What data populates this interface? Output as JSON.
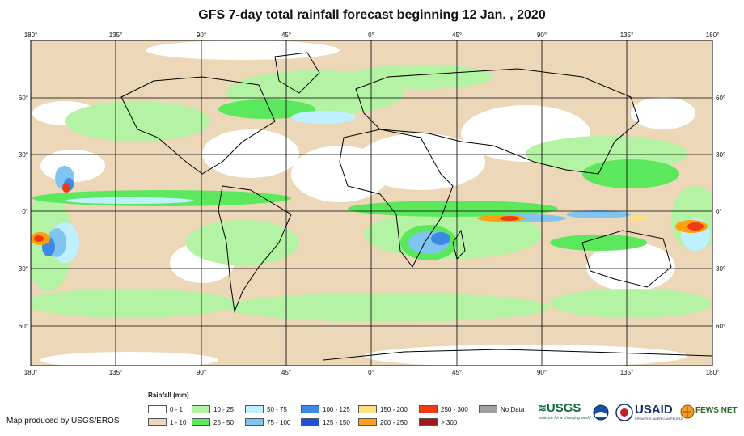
{
  "title": "GFS 7-day total rainfall forecast beginning 12 Jan. , 2020",
  "axes": {
    "lon_ticks": [
      "180°",
      "135°",
      "90°",
      "45°",
      "0°",
      "45°",
      "90°",
      "135°",
      "180°"
    ],
    "lat_ticks": [
      "60°",
      "30°",
      "0°",
      "30°",
      "60°"
    ]
  },
  "legend": {
    "title": "Rainfall (mm)",
    "items": [
      {
        "label": "0 - 1",
        "color": "#ffffff"
      },
      {
        "label": "1 - 10",
        "color": "#ecd8b8"
      },
      {
        "label": "10 - 25",
        "color": "#b4f2a4"
      },
      {
        "label": "25 - 50",
        "color": "#5ce85c"
      },
      {
        "label": "50 - 75",
        "color": "#bff0ff"
      },
      {
        "label": "75 - 100",
        "color": "#80c4f2"
      },
      {
        "label": "100 - 125",
        "color": "#3c8ae6"
      },
      {
        "label": "125 - 150",
        "color": "#1f51d8"
      },
      {
        "label": "150 - 200",
        "color": "#ffe080"
      },
      {
        "label": "200 - 250",
        "color": "#ffa010"
      },
      {
        "label": "250 - 300",
        "color": "#f03a10"
      },
      {
        "label": "> 300",
        "color": "#a01818"
      },
      {
        "label": "No Data",
        "color": "#a0a0a0"
      }
    ]
  },
  "credit": "Map produced by USGS/EROS",
  "logos": {
    "usgs": "USGS",
    "usgs_tagline": "science for a changing world",
    "usaid": "USAID",
    "usaid_tagline": "FROM THE AMERICAN PEOPLE",
    "fewsnet": "FEWS NET"
  }
}
